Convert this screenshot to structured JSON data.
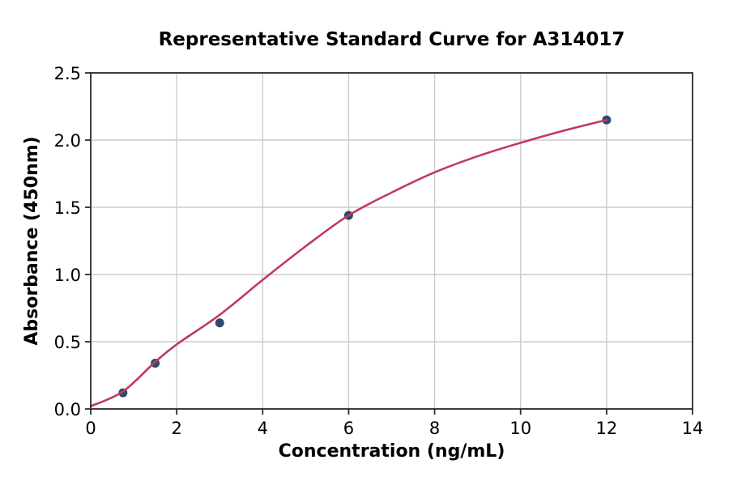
{
  "figure": {
    "background": "#ffffff"
  },
  "chart_data": {
    "type": "scatter",
    "title": "Representative Standard Curve for A314017",
    "xlabel": "Concentration (ng/mL)",
    "ylabel": "Absorbance (450nm)",
    "xlim": [
      0,
      14
    ],
    "ylim": [
      0,
      2.5
    ],
    "x_ticks": [
      0,
      2,
      4,
      6,
      8,
      10,
      12,
      14
    ],
    "x_tick_labels": [
      "0",
      "2",
      "4",
      "6",
      "8",
      "10",
      "12",
      "14"
    ],
    "y_ticks": [
      0,
      0.5,
      1,
      1.5,
      2,
      2.5
    ],
    "y_tick_labels": [
      "0.0",
      "0.5",
      "1.0",
      "1.5",
      "2.0",
      "2.5"
    ],
    "grid": true,
    "legend_position": "none",
    "series": [
      {
        "name": "standard-points",
        "type": "scatter",
        "marker": "circle",
        "marker_radius": 5.5,
        "color": "#30486b",
        "x": [
          0.75,
          1.5,
          3,
          6,
          12
        ],
        "y": [
          0.12,
          0.34,
          0.64,
          1.44,
          2.15
        ]
      },
      {
        "name": "fitted-curve",
        "type": "line",
        "color": "#bf3a5f",
        "width": 2.6,
        "x": [
          0,
          0.75,
          1.5,
          2,
          3,
          4,
          5,
          6,
          7,
          8,
          9,
          10,
          11,
          12
        ],
        "y": [
          0.02,
          0.13,
          0.35,
          0.48,
          0.7,
          0.96,
          1.21,
          1.44,
          1.61,
          1.76,
          1.88,
          1.98,
          2.07,
          2.15
        ]
      }
    ],
    "colors": {
      "grid": "#cccccc",
      "spine": "#2b2b2b",
      "text": "#000000",
      "background": "#ffffff"
    }
  }
}
